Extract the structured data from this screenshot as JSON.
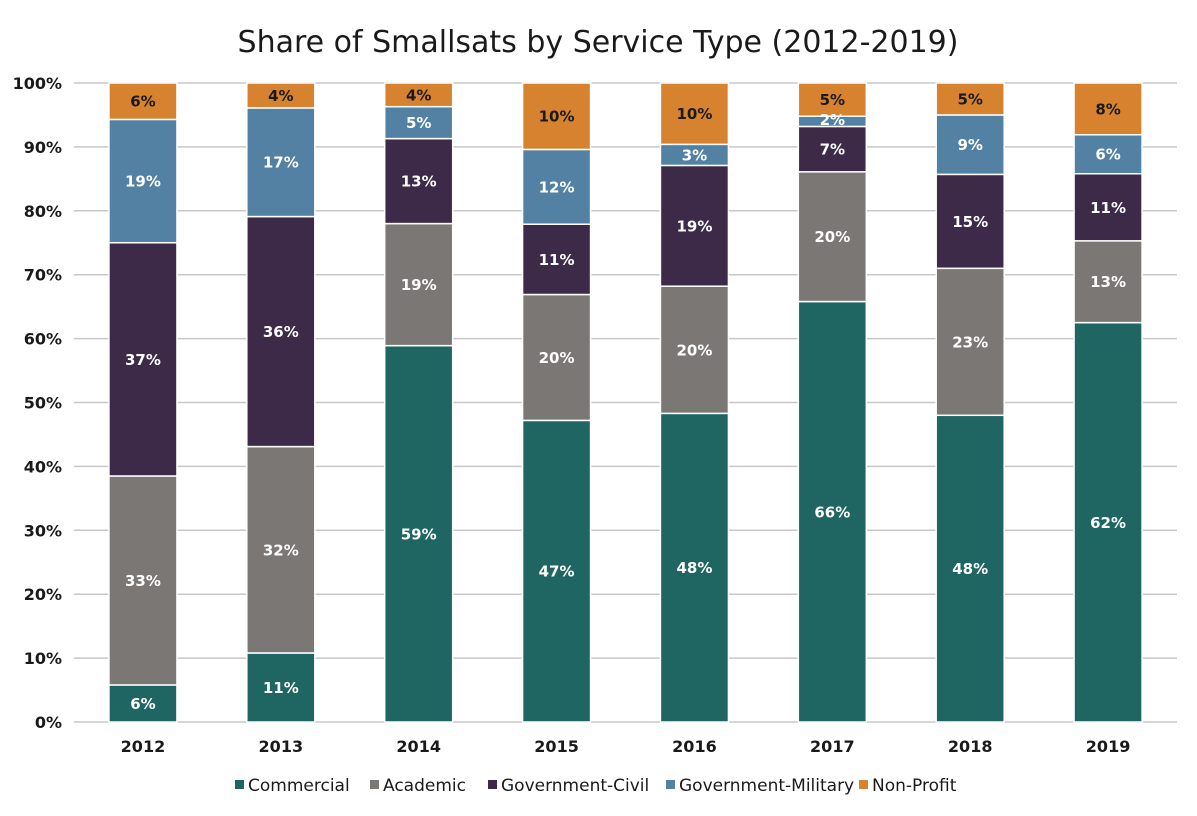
{
  "chart_data": {
    "type": "bar",
    "stacked": true,
    "title": "Share of Smallsats by Service Type (2012-2019)",
    "xlabel": "",
    "ylabel": "",
    "ylim": [
      0,
      100
    ],
    "y_tick_labels": [
      "0%",
      "10%",
      "20%",
      "30%",
      "40%",
      "50%",
      "60%",
      "70%",
      "80%",
      "90%",
      "100%"
    ],
    "grid": "horizontal",
    "legend_position": "bottom",
    "categories": [
      "2012",
      "2013",
      "2014",
      "2015",
      "2016",
      "2017",
      "2018",
      "2019"
    ],
    "series": [
      {
        "name": "Commercial",
        "color": "#1f6663",
        "values": [
          5.8,
          10.8,
          58.9,
          47.2,
          48.3,
          65.8,
          48.0,
          62.5
        ],
        "labels": [
          "6%",
          "11%",
          "59%",
          "47%",
          "48%",
          "66%",
          "48%",
          "62%"
        ]
      },
      {
        "name": "Academic",
        "color": "#7b7775",
        "values": [
          32.7,
          32.3,
          19.1,
          19.7,
          19.9,
          20.3,
          23.0,
          12.8
        ],
        "labels": [
          "33%",
          "32%",
          "19%",
          "20%",
          "20%",
          "20%",
          "23%",
          "13%"
        ]
      },
      {
        "name": "Government-Civil",
        "color": "#3c2a48",
        "values": [
          36.5,
          36.0,
          13.3,
          11.0,
          18.9,
          7.1,
          14.7,
          10.5
        ],
        "labels": [
          "37%",
          "36%",
          "13%",
          "11%",
          "19%",
          "7%",
          "15%",
          "11%"
        ]
      },
      {
        "name": "Government-Military",
        "color": "#5381a3",
        "values": [
          19.3,
          17.0,
          5.0,
          11.7,
          3.3,
          1.6,
          9.3,
          6.1
        ],
        "labels": [
          "19%",
          "17%",
          "5%",
          "12%",
          "3%",
          "2%",
          "9%",
          "6%"
        ]
      },
      {
        "name": "Non-Profit",
        "color": "#d7822f",
        "values": [
          5.7,
          3.9,
          3.7,
          10.4,
          9.6,
          5.2,
          5.0,
          8.1
        ],
        "labels": [
          "6%",
          "4%",
          "4%",
          "10%",
          "10%",
          "5%",
          "5%",
          "8%"
        ]
      }
    ]
  }
}
